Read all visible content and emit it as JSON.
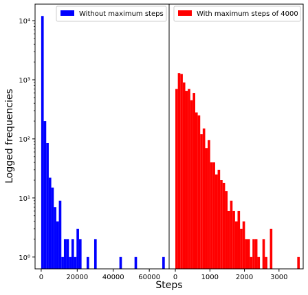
{
  "chart_data": [
    {
      "type": "bar",
      "subtype": "histogram",
      "yscale": "log",
      "xlim": [
        -3400,
        71000
      ],
      "ylim_log10": [
        -0.2,
        4.28
      ],
      "xticks": [
        0,
        20000,
        40000,
        60000
      ],
      "xtick_labels": [
        "0",
        "20000",
        "40000",
        "60000"
      ],
      "yticks": [
        1,
        10,
        100,
        1000,
        10000
      ],
      "ytick_labels": [
        "10⁰",
        "10¹",
        "10²",
        "10³",
        "10⁴"
      ],
      "bin_width": 1400,
      "color": "#0000ff",
      "legend": "Without maximum steps",
      "legend_position": "top-right",
      "ylabel": "Logged frequencies",
      "bars": [
        {
          "x": 0,
          "y": 12000
        },
        {
          "x": 1400,
          "y": 200
        },
        {
          "x": 2800,
          "y": 85
        },
        {
          "x": 4200,
          "y": 22
        },
        {
          "x": 5600,
          "y": 15
        },
        {
          "x": 7000,
          "y": 7
        },
        {
          "x": 8400,
          "y": 4
        },
        {
          "x": 9800,
          "y": 9
        },
        {
          "x": 11200,
          "y": 1
        },
        {
          "x": 12600,
          "y": 2
        },
        {
          "x": 14000,
          "y": 2
        },
        {
          "x": 15400,
          "y": 1
        },
        {
          "x": 16800,
          "y": 2
        },
        {
          "x": 18200,
          "y": 1
        },
        {
          "x": 19600,
          "y": 3
        },
        {
          "x": 21000,
          "y": 2
        },
        {
          "x": 25200,
          "y": 1
        },
        {
          "x": 29400,
          "y": 2
        },
        {
          "x": 43400,
          "y": 1
        },
        {
          "x": 51800,
          "y": 1
        },
        {
          "x": 67200,
          "y": 1
        }
      ]
    },
    {
      "type": "bar",
      "subtype": "histogram",
      "yscale": "log",
      "xlim": [
        -180,
        3700
      ],
      "ylim_log10": [
        -0.2,
        4.28
      ],
      "xticks": [
        0,
        1000,
        2000,
        3000
      ],
      "xtick_labels": [
        "0",
        "1000",
        "2000",
        "3000"
      ],
      "bin_width": 72,
      "color": "#ff0000",
      "legend": "With maximum steps of 4000",
      "legend_position": "top-right",
      "xlabel": "Steps",
      "bars": [
        {
          "x": 0,
          "y": 700
        },
        {
          "x": 72,
          "y": 1300
        },
        {
          "x": 144,
          "y": 1250
        },
        {
          "x": 216,
          "y": 900
        },
        {
          "x": 288,
          "y": 650
        },
        {
          "x": 360,
          "y": 700
        },
        {
          "x": 432,
          "y": 450
        },
        {
          "x": 504,
          "y": 600
        },
        {
          "x": 576,
          "y": 280
        },
        {
          "x": 648,
          "y": 250
        },
        {
          "x": 720,
          "y": 120
        },
        {
          "x": 792,
          "y": 150
        },
        {
          "x": 864,
          "y": 70
        },
        {
          "x": 936,
          "y": 95
        },
        {
          "x": 1008,
          "y": 40
        },
        {
          "x": 1080,
          "y": 40
        },
        {
          "x": 1152,
          "y": 25
        },
        {
          "x": 1224,
          "y": 30
        },
        {
          "x": 1296,
          "y": 20
        },
        {
          "x": 1368,
          "y": 18
        },
        {
          "x": 1440,
          "y": 13
        },
        {
          "x": 1512,
          "y": 6
        },
        {
          "x": 1584,
          "y": 9
        },
        {
          "x": 1656,
          "y": 6
        },
        {
          "x": 1728,
          "y": 4
        },
        {
          "x": 1800,
          "y": 6
        },
        {
          "x": 1872,
          "y": 3
        },
        {
          "x": 1944,
          "y": 4
        },
        {
          "x": 2016,
          "y": 2
        },
        {
          "x": 2088,
          "y": 2
        },
        {
          "x": 2160,
          "y": 1
        },
        {
          "x": 2232,
          "y": 2
        },
        {
          "x": 2304,
          "y": 2
        },
        {
          "x": 2376,
          "y": 1
        },
        {
          "x": 2520,
          "y": 2
        },
        {
          "x": 2592,
          "y": 1
        },
        {
          "x": 2736,
          "y": 3
        },
        {
          "x": 3528,
          "y": 1
        }
      ]
    }
  ]
}
